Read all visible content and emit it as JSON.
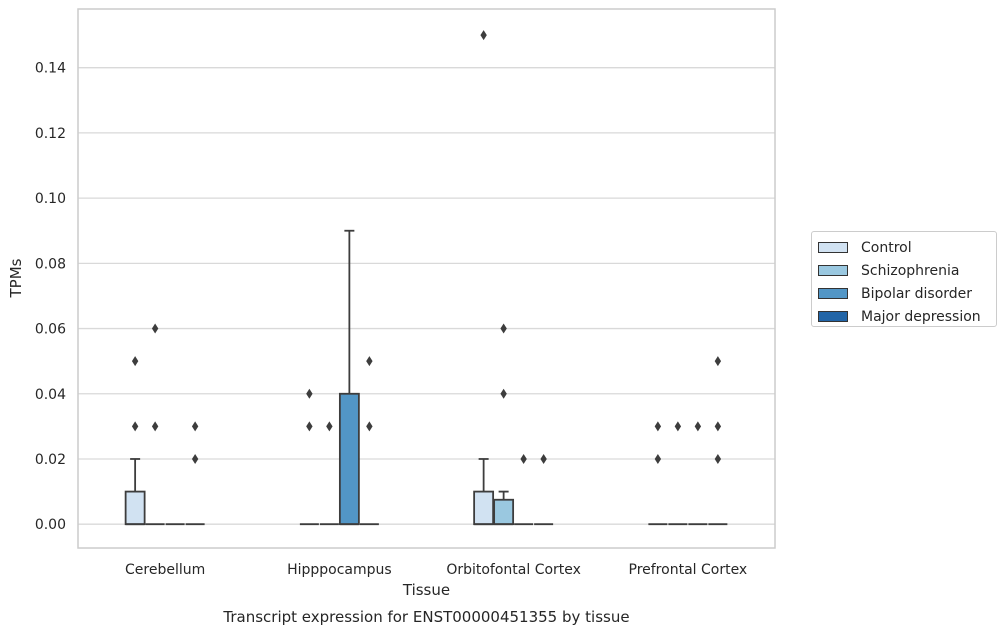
{
  "chart_data": {
    "type": "box",
    "title": "Transcript expression for ENST00000451355 by tissue",
    "xlabel": "Tissue",
    "ylabel": "TPMs",
    "ylim": [
      -0.0073,
      0.158
    ],
    "yticks": [
      "0.00",
      "0.02",
      "0.04",
      "0.06",
      "0.08",
      "0.10",
      "0.12",
      "0.14"
    ],
    "grid": true,
    "legend_position": "right",
    "categories": [
      "Cerebellum",
      "Hipppocampus",
      "Orbitofontal Cortex",
      "Prefrontal Cortex"
    ],
    "series": [
      {
        "name": "Control",
        "color": "#d1e2f2",
        "boxes": [
          {
            "q1": 0,
            "median": 0,
            "q3": 0.01,
            "whisker_low": 0,
            "whisker_high": 0.02,
            "outliers": [
              0.03,
              0.05
            ]
          },
          {
            "q1": 0,
            "median": 0,
            "q3": 0,
            "whisker_low": 0,
            "whisker_high": 0,
            "outliers": [
              0.03,
              0.04
            ]
          },
          {
            "q1": 0,
            "median": 0,
            "q3": 0.01,
            "whisker_low": 0,
            "whisker_high": 0.02,
            "outliers": [
              0.15
            ]
          },
          {
            "q1": 0,
            "median": 0,
            "q3": 0,
            "whisker_low": 0,
            "whisker_high": 0,
            "outliers": [
              0.02,
              0.03
            ]
          }
        ]
      },
      {
        "name": "Schizophrenia",
        "color": "#9ac8e0",
        "boxes": [
          {
            "q1": 0,
            "median": 0,
            "q3": 0,
            "whisker_low": 0,
            "whisker_high": 0,
            "outliers": [
              0.03,
              0.06
            ]
          },
          {
            "q1": 0,
            "median": 0,
            "q3": 0,
            "whisker_low": 0,
            "whisker_high": 0,
            "outliers": [
              0.03
            ]
          },
          {
            "q1": 0,
            "median": 0,
            "q3": 0.0075,
            "whisker_low": 0,
            "whisker_high": 0.01,
            "outliers": [
              0.04,
              0.06
            ]
          },
          {
            "q1": 0,
            "median": 0,
            "q3": 0,
            "whisker_low": 0,
            "whisker_high": 0,
            "outliers": [
              0.03
            ]
          }
        ]
      },
      {
        "name": "Bipolar disorder",
        "color": "#5296c6",
        "boxes": [
          {
            "q1": 0,
            "median": 0,
            "q3": 0,
            "whisker_low": 0,
            "whisker_high": 0,
            "outliers": []
          },
          {
            "q1": 0,
            "median": 0,
            "q3": 0.04,
            "whisker_low": 0,
            "whisker_high": 0.09,
            "outliers": []
          },
          {
            "q1": 0,
            "median": 0,
            "q3": 0,
            "whisker_low": 0,
            "whisker_high": 0,
            "outliers": [
              0.02
            ]
          },
          {
            "q1": 0,
            "median": 0,
            "q3": 0,
            "whisker_low": 0,
            "whisker_high": 0,
            "outliers": [
              0.03
            ]
          }
        ]
      },
      {
        "name": "Major depression",
        "color": "#2265a7",
        "boxes": [
          {
            "q1": 0,
            "median": 0,
            "q3": 0,
            "whisker_low": 0,
            "whisker_high": 0,
            "outliers": [
              0.02,
              0.03
            ]
          },
          {
            "q1": 0,
            "median": 0,
            "q3": 0,
            "whisker_low": 0,
            "whisker_high": 0,
            "outliers": [
              0.03,
              0.05
            ]
          },
          {
            "q1": 0,
            "median": 0,
            "q3": 0,
            "whisker_low": 0,
            "whisker_high": 0,
            "outliers": [
              0.02
            ]
          },
          {
            "q1": 0,
            "median": 0,
            "q3": 0,
            "whisker_low": 0,
            "whisker_high": 0,
            "outliers": [
              0.02,
              0.03,
              0.05
            ]
          }
        ]
      }
    ]
  }
}
